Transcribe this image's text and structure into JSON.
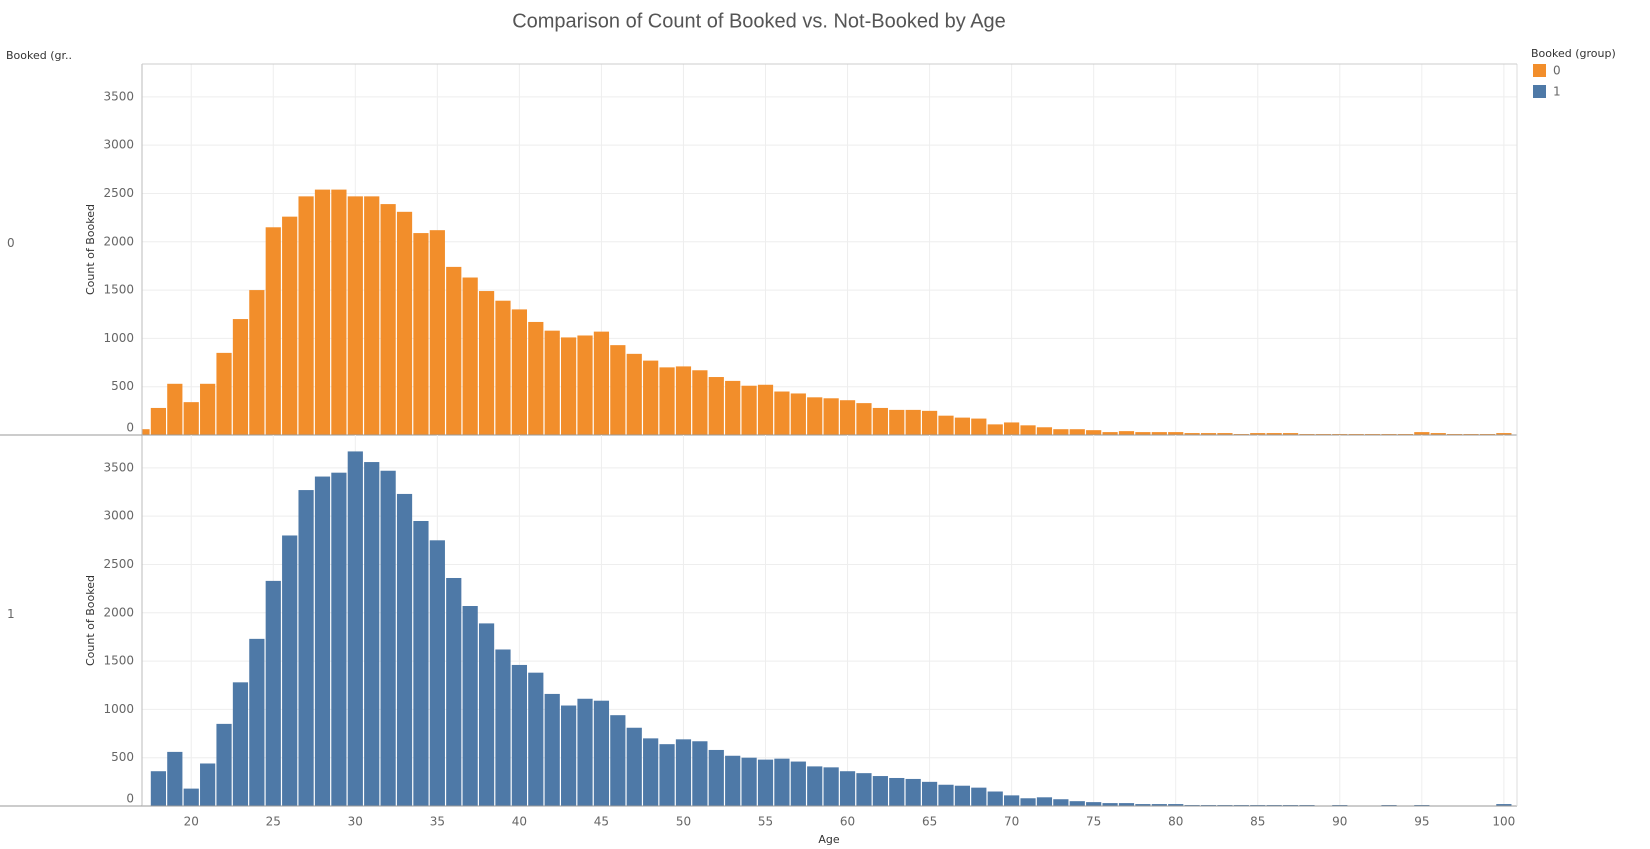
{
  "chart_data": {
    "type": "bar",
    "title": "Comparison of Count of Booked vs. Not-Booked by Age",
    "row_header": "Booked (gr..",
    "legend_title": "Booked (group)",
    "x_label": "Age",
    "y_label": "Count of Booked",
    "x": [
      17,
      18,
      19,
      20,
      21,
      22,
      23,
      24,
      25,
      26,
      27,
      28,
      29,
      30,
      31,
      32,
      33,
      34,
      35,
      36,
      37,
      38,
      39,
      40,
      41,
      42,
      43,
      44,
      45,
      46,
      47,
      48,
      49,
      50,
      51,
      52,
      53,
      54,
      55,
      56,
      57,
      58,
      59,
      60,
      61,
      62,
      63,
      64,
      65,
      66,
      67,
      68,
      69,
      70,
      71,
      72,
      73,
      74,
      75,
      76,
      77,
      78,
      79,
      80,
      81,
      82,
      83,
      84,
      85,
      86,
      87,
      88,
      89,
      90,
      91,
      92,
      93,
      94,
      95,
      96,
      97,
      98,
      99,
      100
    ],
    "series": [
      {
        "name": "0",
        "color": "#f28e2b",
        "values": [
          60,
          280,
          530,
          340,
          530,
          850,
          1200,
          1500,
          2150,
          2260,
          2470,
          2540,
          2540,
          2470,
          2470,
          2390,
          2310,
          2090,
          2120,
          1740,
          1630,
          1490,
          1390,
          1300,
          1170,
          1080,
          1010,
          1030,
          1070,
          930,
          840,
          770,
          700,
          710,
          670,
          600,
          560,
          510,
          520,
          450,
          430,
          390,
          380,
          360,
          330,
          280,
          260,
          260,
          250,
          200,
          180,
          170,
          110,
          130,
          100,
          80,
          60,
          60,
          50,
          30,
          40,
          30,
          30,
          30,
          20,
          20,
          20,
          10,
          20,
          20,
          20,
          10,
          10,
          10,
          10,
          10,
          10,
          10,
          30,
          20,
          10,
          10,
          10,
          20
        ]
      },
      {
        "name": "1",
        "color": "#4e79a7",
        "values": [
          0,
          360,
          560,
          180,
          440,
          850,
          1280,
          1730,
          2330,
          2800,
          3270,
          3410,
          3450,
          3670,
          3560,
          3470,
          3230,
          2950,
          2750,
          2360,
          2070,
          1890,
          1620,
          1460,
          1380,
          1160,
          1040,
          1110,
          1090,
          940,
          810,
          700,
          640,
          690,
          670,
          580,
          520,
          500,
          480,
          490,
          460,
          410,
          400,
          360,
          340,
          310,
          290,
          280,
          250,
          220,
          210,
          190,
          150,
          110,
          80,
          90,
          70,
          50,
          40,
          30,
          30,
          20,
          20,
          20,
          10,
          10,
          10,
          10,
          10,
          10,
          10,
          10,
          0,
          10,
          0,
          0,
          10,
          0,
          10,
          0,
          0,
          0,
          0,
          20
        ]
      }
    ],
    "xlim": [
      17,
      100.8
    ],
    "xticks": [
      20,
      25,
      30,
      35,
      40,
      45,
      50,
      55,
      60,
      65,
      70,
      75,
      80,
      85,
      90,
      95,
      100
    ],
    "ylim": [
      0,
      3840
    ],
    "yticks": [
      0,
      500,
      1000,
      1500,
      2000,
      2500,
      3000,
      3500
    ],
    "grid": true
  }
}
